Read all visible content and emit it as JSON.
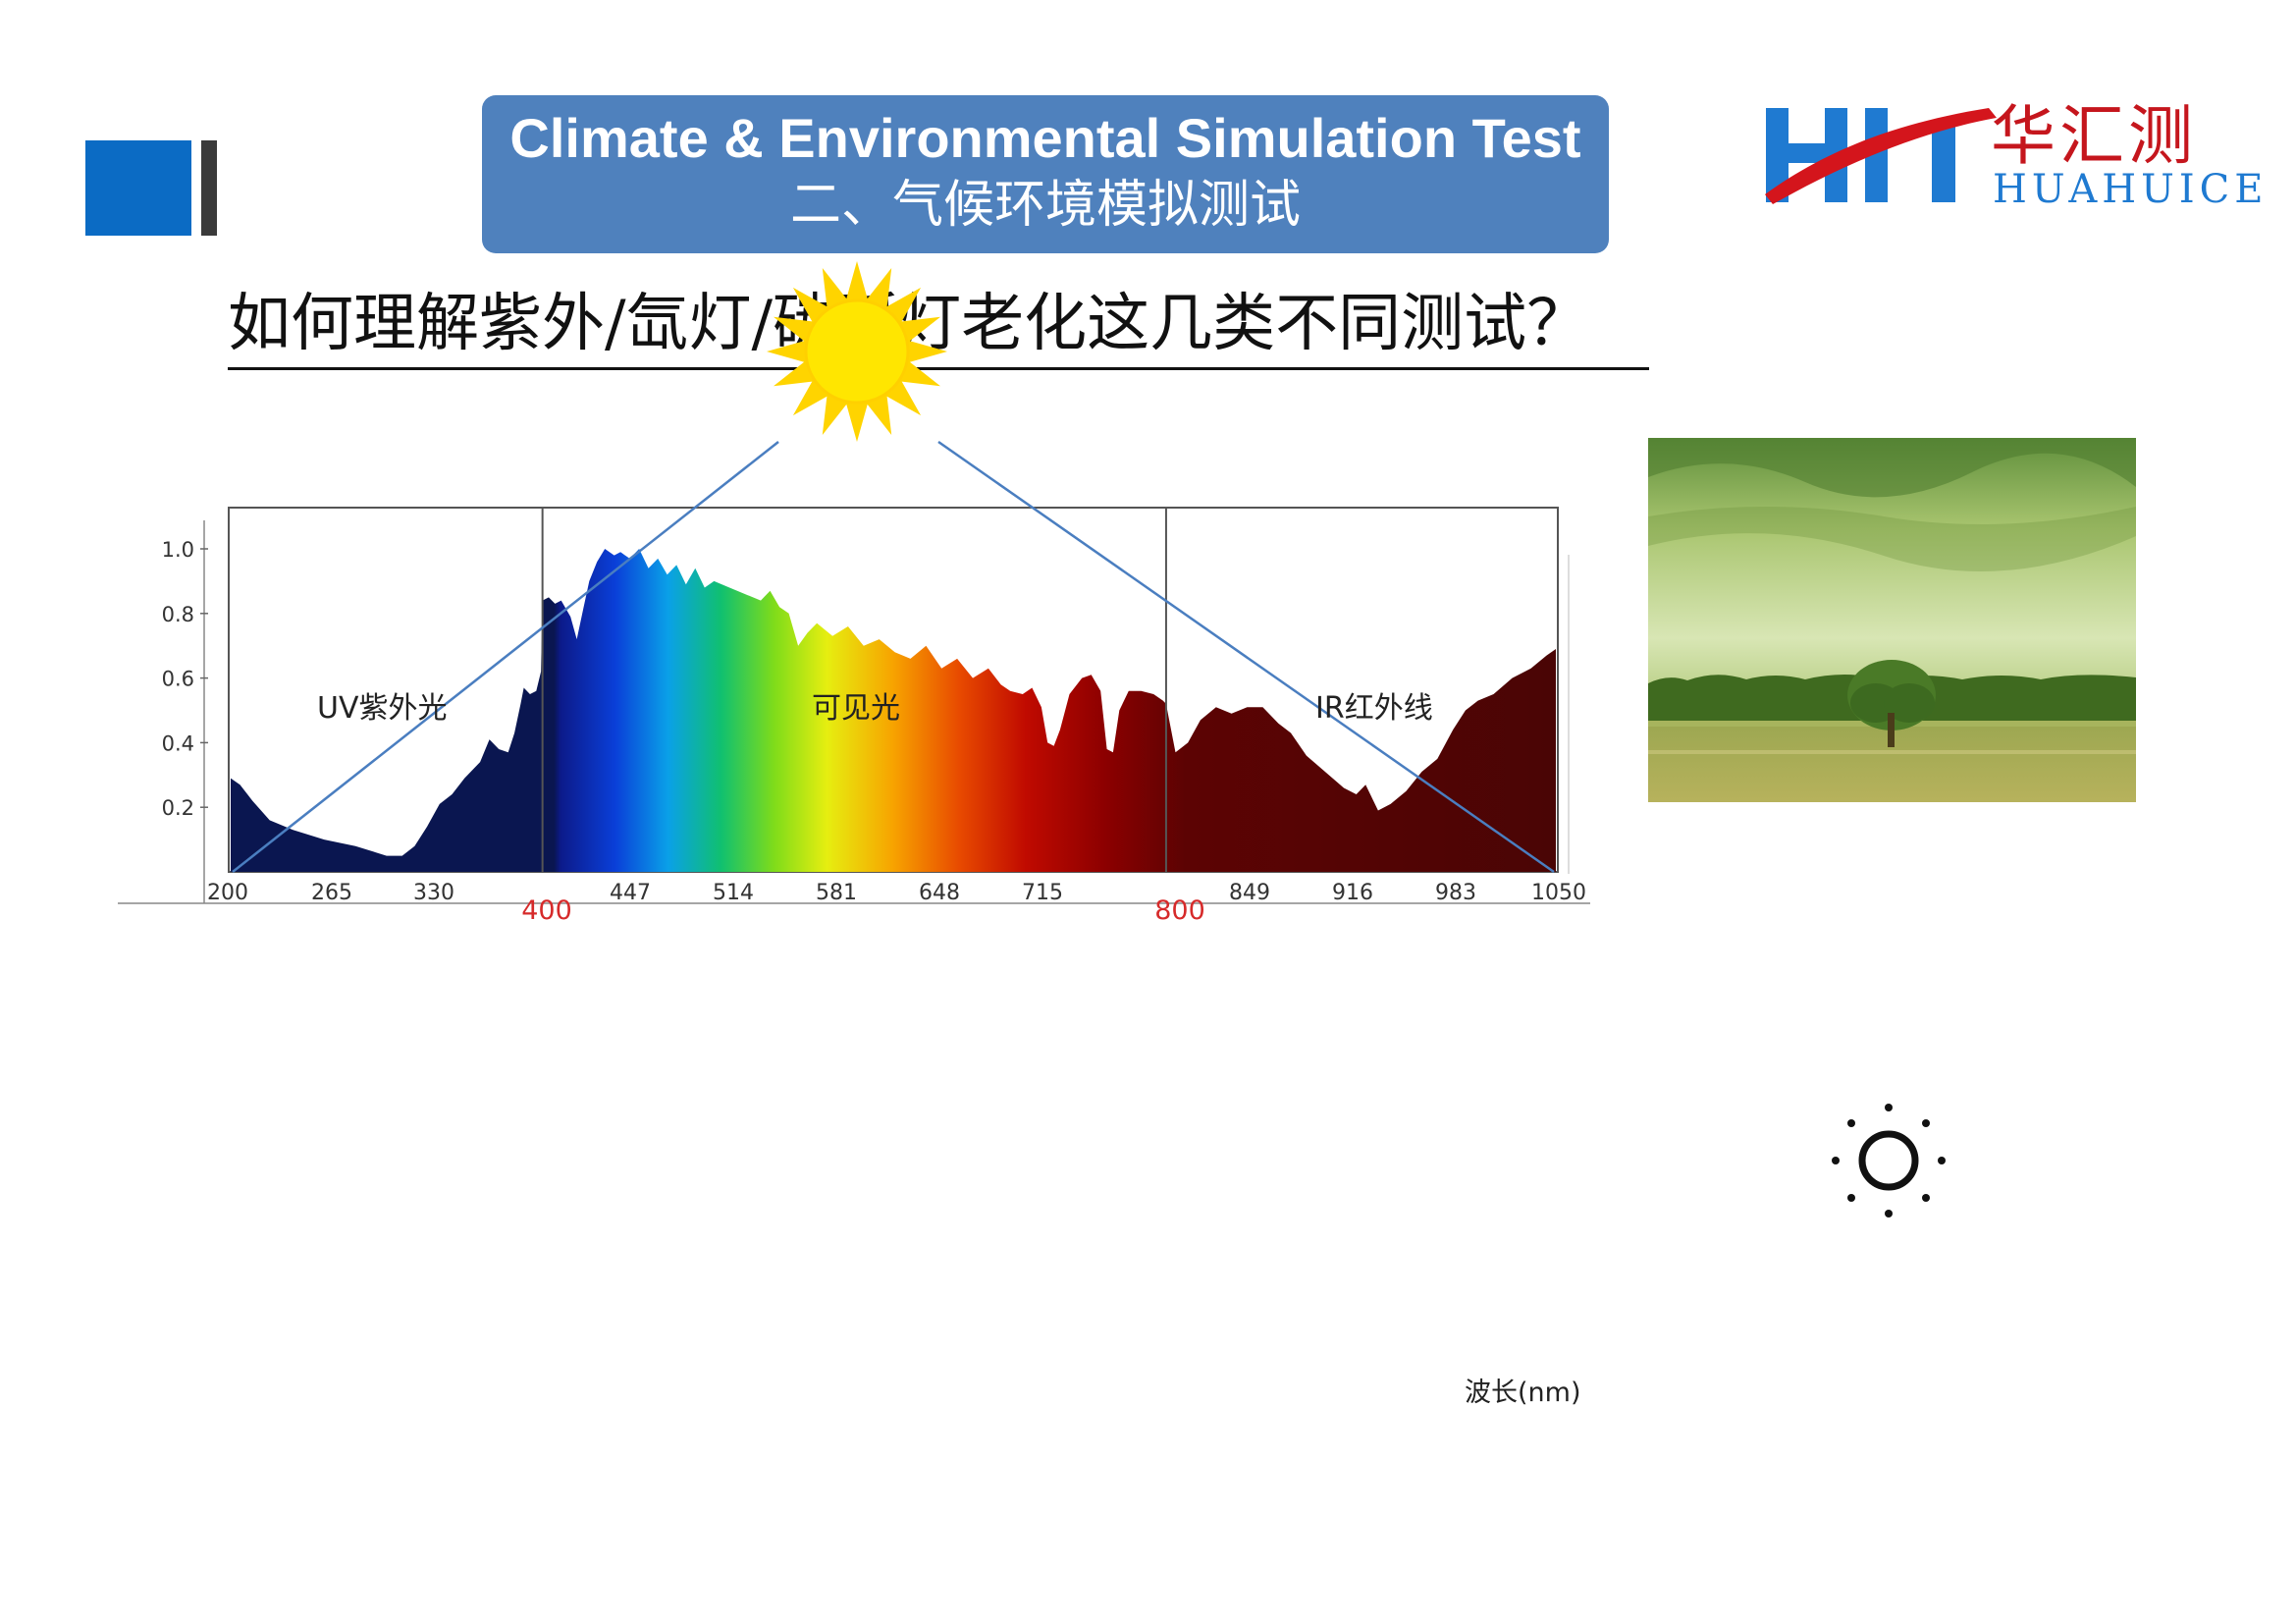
{
  "header": {
    "title_en": "Climate & Environmental Simulation Test",
    "title_zh": "二、气候环境模拟测试"
  },
  "logo": {
    "text_zh": "华汇测",
    "text_en": "HUAHUICE",
    "colors": {
      "red": "#c5161d",
      "blue": "#1f7ad1"
    }
  },
  "question": "如何理解紫外/氙灯/碳弧灯老化这几类不同测试？",
  "icons": {
    "top_left": "brand-blocks",
    "sun_top": "sun-icon",
    "sun_right": "brightness-icon",
    "photo": "landscape-photo"
  },
  "chart_data": {
    "type": "area",
    "regions": [
      {
        "label": "UV紫外光",
        "from": 200,
        "to": 400,
        "color": "#0a1650"
      },
      {
        "label": "可见光",
        "from": 400,
        "to": 800,
        "color": "spectrum"
      },
      {
        "label": "IR红外线",
        "from": 800,
        "to": 1050,
        "color": "#4a0505"
      }
    ],
    "x_ticks": [
      200,
      265,
      330,
      400,
      447,
      514,
      581,
      648,
      715,
      800,
      849,
      916,
      983,
      1050
    ],
    "x_highlight_ticks": [
      400,
      800
    ],
    "y_ticks": [
      "1.0",
      "0.8",
      "0.6",
      "0.4",
      "0.2"
    ],
    "xlabel": "波长(nm)",
    "xlim": [
      200,
      1050
    ],
    "ylim": [
      0,
      1.1
    ],
    "points": [
      [
        200,
        0.29
      ],
      [
        206,
        0.27
      ],
      [
        214,
        0.22
      ],
      [
        225,
        0.16
      ],
      [
        240,
        0.13
      ],
      [
        260,
        0.1
      ],
      [
        280,
        0.08
      ],
      [
        300,
        0.05
      ],
      [
        310,
        0.05
      ],
      [
        318,
        0.08
      ],
      [
        326,
        0.14
      ],
      [
        334,
        0.21
      ],
      [
        342,
        0.24
      ],
      [
        350,
        0.29
      ],
      [
        360,
        0.34
      ],
      [
        366,
        0.41
      ],
      [
        372,
        0.38
      ],
      [
        378,
        0.37
      ],
      [
        382,
        0.43
      ],
      [
        386,
        0.52
      ],
      [
        388,
        0.57
      ],
      [
        392,
        0.55
      ],
      [
        396,
        0.56
      ],
      [
        399,
        0.62
      ],
      [
        400,
        0.84
      ],
      [
        404,
        0.85
      ],
      [
        408,
        0.83
      ],
      [
        412,
        0.84
      ],
      [
        418,
        0.79
      ],
      [
        422,
        0.72
      ],
      [
        426,
        0.81
      ],
      [
        430,
        0.9
      ],
      [
        435,
        0.96
      ],
      [
        440,
        1.0
      ],
      [
        446,
        0.98
      ],
      [
        450,
        0.99
      ],
      [
        456,
        0.97
      ],
      [
        462,
        1.0
      ],
      [
        468,
        0.94
      ],
      [
        474,
        0.97
      ],
      [
        480,
        0.92
      ],
      [
        486,
        0.95
      ],
      [
        492,
        0.89
      ],
      [
        498,
        0.94
      ],
      [
        504,
        0.88
      ],
      [
        510,
        0.9
      ],
      [
        520,
        0.88
      ],
      [
        530,
        0.86
      ],
      [
        540,
        0.84
      ],
      [
        546,
        0.87
      ],
      [
        552,
        0.82
      ],
      [
        558,
        0.8
      ],
      [
        564,
        0.7
      ],
      [
        570,
        0.74
      ],
      [
        576,
        0.77
      ],
      [
        586,
        0.73
      ],
      [
        596,
        0.76
      ],
      [
        606,
        0.7
      ],
      [
        616,
        0.72
      ],
      [
        626,
        0.68
      ],
      [
        636,
        0.66
      ],
      [
        646,
        0.7
      ],
      [
        656,
        0.63
      ],
      [
        666,
        0.66
      ],
      [
        676,
        0.6
      ],
      [
        686,
        0.63
      ],
      [
        694,
        0.58
      ],
      [
        700,
        0.56
      ],
      [
        708,
        0.55
      ],
      [
        714,
        0.57
      ],
      [
        720,
        0.51
      ],
      [
        724,
        0.4
      ],
      [
        728,
        0.39
      ],
      [
        732,
        0.44
      ],
      [
        738,
        0.55
      ],
      [
        746,
        0.6
      ],
      [
        752,
        0.61
      ],
      [
        758,
        0.56
      ],
      [
        762,
        0.38
      ],
      [
        766,
        0.37
      ],
      [
        770,
        0.5
      ],
      [
        776,
        0.56
      ],
      [
        784,
        0.56
      ],
      [
        792,
        0.55
      ],
      [
        798,
        0.53
      ],
      [
        800,
        0.52
      ],
      [
        806,
        0.37
      ],
      [
        814,
        0.4
      ],
      [
        822,
        0.47
      ],
      [
        832,
        0.51
      ],
      [
        842,
        0.49
      ],
      [
        852,
        0.51
      ],
      [
        862,
        0.51
      ],
      [
        872,
        0.46
      ],
      [
        880,
        0.43
      ],
      [
        890,
        0.36
      ],
      [
        902,
        0.31
      ],
      [
        914,
        0.26
      ],
      [
        922,
        0.24
      ],
      [
        928,
        0.27
      ],
      [
        936,
        0.19
      ],
      [
        944,
        0.21
      ],
      [
        954,
        0.25
      ],
      [
        964,
        0.31
      ],
      [
        974,
        0.35
      ],
      [
        984,
        0.44
      ],
      [
        992,
        0.5
      ],
      [
        1000,
        0.53
      ],
      [
        1010,
        0.55
      ],
      [
        1022,
        0.6
      ],
      [
        1034,
        0.63
      ],
      [
        1044,
        0.67
      ],
      [
        1050,
        0.69
      ]
    ]
  }
}
